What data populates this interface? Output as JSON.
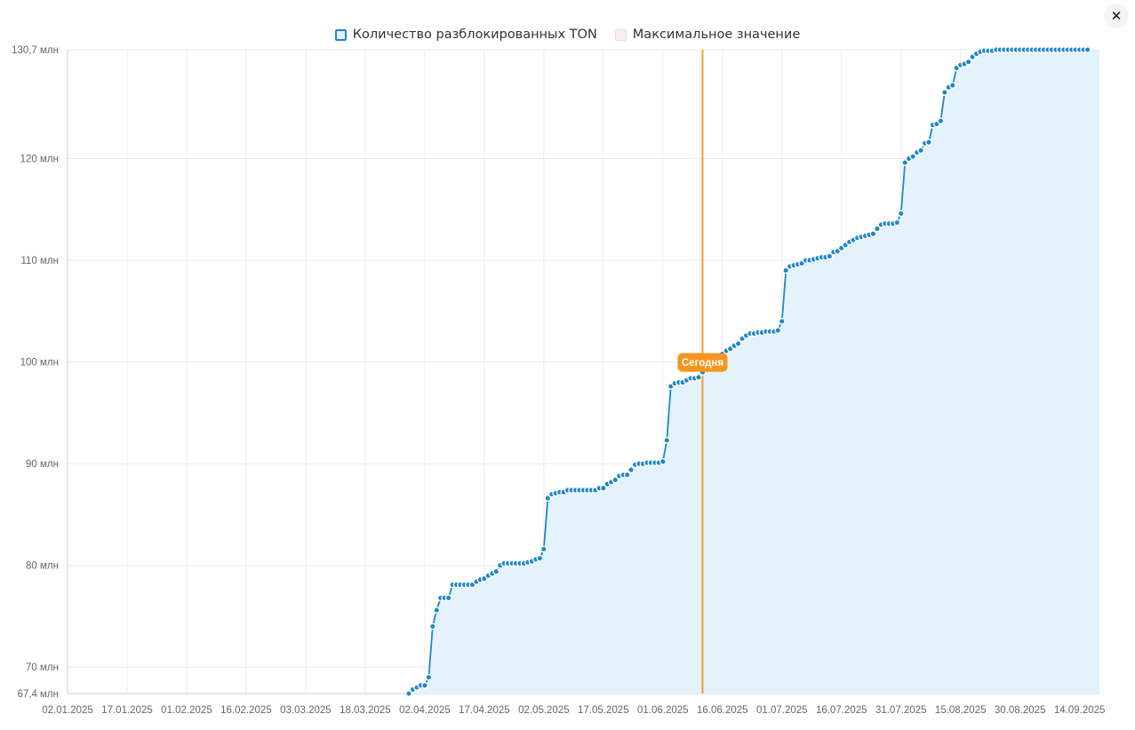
{
  "close_icon": "✕",
  "chart_data": {
    "type": "area",
    "series": [
      {
        "name": "Количество разблокированных TON",
        "color": "#1e88c7",
        "fill": "#e3f2fb",
        "points": [
          [
            "2025-03-29",
            67.4
          ],
          [
            "2025-03-30",
            67.8
          ],
          [
            "2025-03-31",
            68.0
          ],
          [
            "2025-04-01",
            68.2
          ],
          [
            "2025-04-02",
            68.2
          ],
          [
            "2025-04-03",
            69.0
          ],
          [
            "2025-04-04",
            74.0
          ],
          [
            "2025-04-05",
            75.6
          ],
          [
            "2025-04-06",
            76.8
          ],
          [
            "2025-04-07",
            76.8
          ],
          [
            "2025-04-08",
            76.8
          ],
          [
            "2025-04-09",
            78.1
          ],
          [
            "2025-04-10",
            78.1
          ],
          [
            "2025-04-11",
            78.1
          ],
          [
            "2025-04-12",
            78.1
          ],
          [
            "2025-04-13",
            78.1
          ],
          [
            "2025-04-14",
            78.1
          ],
          [
            "2025-04-15",
            78.4
          ],
          [
            "2025-04-16",
            78.6
          ],
          [
            "2025-04-17",
            78.7
          ],
          [
            "2025-04-18",
            79.0
          ],
          [
            "2025-04-19",
            79.2
          ],
          [
            "2025-04-20",
            79.4
          ],
          [
            "2025-04-21",
            80.0
          ],
          [
            "2025-04-22",
            80.2
          ],
          [
            "2025-04-23",
            80.2
          ],
          [
            "2025-04-24",
            80.2
          ],
          [
            "2025-04-25",
            80.2
          ],
          [
            "2025-04-26",
            80.2
          ],
          [
            "2025-04-27",
            80.2
          ],
          [
            "2025-04-28",
            80.3
          ],
          [
            "2025-04-29",
            80.4
          ],
          [
            "2025-04-30",
            80.6
          ],
          [
            "2025-05-01",
            80.7
          ],
          [
            "2025-05-02",
            81.6
          ],
          [
            "2025-05-03",
            86.6
          ],
          [
            "2025-05-04",
            87.0
          ],
          [
            "2025-05-05",
            87.1
          ],
          [
            "2025-05-06",
            87.2
          ],
          [
            "2025-05-07",
            87.2
          ],
          [
            "2025-05-08",
            87.4
          ],
          [
            "2025-05-09",
            87.4
          ],
          [
            "2025-05-10",
            87.4
          ],
          [
            "2025-05-11",
            87.4
          ],
          [
            "2025-05-12",
            87.4
          ],
          [
            "2025-05-13",
            87.4
          ],
          [
            "2025-05-14",
            87.4
          ],
          [
            "2025-05-15",
            87.4
          ],
          [
            "2025-05-16",
            87.6
          ],
          [
            "2025-05-17",
            87.6
          ],
          [
            "2025-05-18",
            88.0
          ],
          [
            "2025-05-19",
            88.2
          ],
          [
            "2025-05-20",
            88.4
          ],
          [
            "2025-05-21",
            88.8
          ],
          [
            "2025-05-22",
            88.9
          ],
          [
            "2025-05-23",
            88.9
          ],
          [
            "2025-05-24",
            89.4
          ],
          [
            "2025-05-25",
            89.9
          ],
          [
            "2025-05-26",
            90.0
          ],
          [
            "2025-05-27",
            90.0
          ],
          [
            "2025-05-28",
            90.1
          ],
          [
            "2025-05-29",
            90.1
          ],
          [
            "2025-05-30",
            90.1
          ],
          [
            "2025-05-31",
            90.1
          ],
          [
            "2025-06-01",
            90.2
          ],
          [
            "2025-06-02",
            92.3
          ],
          [
            "2025-06-03",
            97.6
          ],
          [
            "2025-06-04",
            97.9
          ],
          [
            "2025-06-05",
            98.0
          ],
          [
            "2025-06-06",
            98.0
          ],
          [
            "2025-06-07",
            98.2
          ],
          [
            "2025-06-08",
            98.4
          ],
          [
            "2025-06-09",
            98.4
          ],
          [
            "2025-06-10",
            98.5
          ],
          [
            "2025-06-11",
            99.0
          ],
          [
            "2025-06-12",
            99.5
          ],
          [
            "2025-06-13",
            99.8
          ],
          [
            "2025-06-14",
            100.1
          ],
          [
            "2025-06-15",
            100.4
          ],
          [
            "2025-06-16",
            100.8
          ],
          [
            "2025-06-17",
            101.1
          ],
          [
            "2025-06-18",
            101.3
          ],
          [
            "2025-06-19",
            101.6
          ],
          [
            "2025-06-20",
            101.8
          ],
          [
            "2025-06-21",
            102.3
          ],
          [
            "2025-06-22",
            102.6
          ],
          [
            "2025-06-23",
            102.8
          ],
          [
            "2025-06-24",
            102.8
          ],
          [
            "2025-06-25",
            102.9
          ],
          [
            "2025-06-26",
            102.9
          ],
          [
            "2025-06-27",
            103.0
          ],
          [
            "2025-06-28",
            103.0
          ],
          [
            "2025-06-29",
            103.0
          ],
          [
            "2025-06-30",
            103.1
          ],
          [
            "2025-07-01",
            104.0
          ],
          [
            "2025-07-02",
            109.0
          ],
          [
            "2025-07-03",
            109.4
          ],
          [
            "2025-07-04",
            109.5
          ],
          [
            "2025-07-05",
            109.6
          ],
          [
            "2025-07-06",
            109.7
          ],
          [
            "2025-07-07",
            110.0
          ],
          [
            "2025-07-08",
            110.0
          ],
          [
            "2025-07-09",
            110.1
          ],
          [
            "2025-07-10",
            110.2
          ],
          [
            "2025-07-11",
            110.3
          ],
          [
            "2025-07-12",
            110.3
          ],
          [
            "2025-07-13",
            110.4
          ],
          [
            "2025-07-14",
            110.8
          ],
          [
            "2025-07-15",
            110.9
          ],
          [
            "2025-07-16",
            111.2
          ],
          [
            "2025-07-17",
            111.5
          ],
          [
            "2025-07-18",
            111.8
          ],
          [
            "2025-07-19",
            112.0
          ],
          [
            "2025-07-20",
            112.2
          ],
          [
            "2025-07-21",
            112.3
          ],
          [
            "2025-07-22",
            112.4
          ],
          [
            "2025-07-23",
            112.5
          ],
          [
            "2025-07-24",
            112.6
          ],
          [
            "2025-07-25",
            113.1
          ],
          [
            "2025-07-26",
            113.5
          ],
          [
            "2025-07-27",
            113.6
          ],
          [
            "2025-07-28",
            113.6
          ],
          [
            "2025-07-29",
            113.6
          ],
          [
            "2025-07-30",
            113.7
          ],
          [
            "2025-07-31",
            114.6
          ],
          [
            "2025-08-01",
            119.6
          ],
          [
            "2025-08-02",
            120.0
          ],
          [
            "2025-08-03",
            120.2
          ],
          [
            "2025-08-04",
            120.6
          ],
          [
            "2025-08-05",
            120.8
          ],
          [
            "2025-08-06",
            121.5
          ],
          [
            "2025-08-07",
            121.6
          ],
          [
            "2025-08-08",
            123.3
          ],
          [
            "2025-08-09",
            123.4
          ],
          [
            "2025-08-10",
            123.7
          ],
          [
            "2025-08-11",
            126.5
          ],
          [
            "2025-08-12",
            127.0
          ],
          [
            "2025-08-13",
            127.2
          ],
          [
            "2025-08-14",
            128.9
          ],
          [
            "2025-08-15",
            129.2
          ],
          [
            "2025-08-16",
            129.3
          ],
          [
            "2025-08-17",
            129.5
          ],
          [
            "2025-08-18",
            130.0
          ],
          [
            "2025-08-19",
            130.3
          ],
          [
            "2025-08-20",
            130.5
          ],
          [
            "2025-08-21",
            130.6
          ],
          [
            "2025-08-22",
            130.6
          ],
          [
            "2025-08-23",
            130.6
          ],
          [
            "2025-08-24",
            130.7
          ],
          [
            "2025-08-25",
            130.7
          ],
          [
            "2025-08-26",
            130.7
          ],
          [
            "2025-08-27",
            130.7
          ],
          [
            "2025-08-28",
            130.7
          ],
          [
            "2025-08-29",
            130.7
          ],
          [
            "2025-08-30",
            130.7
          ],
          [
            "2025-08-31",
            130.7
          ],
          [
            "2025-09-01",
            130.7
          ],
          [
            "2025-09-02",
            130.7
          ],
          [
            "2025-09-03",
            130.7
          ],
          [
            "2025-09-04",
            130.7
          ],
          [
            "2025-09-05",
            130.7
          ],
          [
            "2025-09-06",
            130.7
          ],
          [
            "2025-09-07",
            130.7
          ],
          [
            "2025-09-08",
            130.7
          ],
          [
            "2025-09-09",
            130.7
          ],
          [
            "2025-09-10",
            130.7
          ],
          [
            "2025-09-11",
            130.7
          ],
          [
            "2025-09-12",
            130.7
          ],
          [
            "2025-09-13",
            130.7
          ],
          [
            "2025-09-14",
            130.7
          ],
          [
            "2025-09-15",
            130.7
          ],
          [
            "2025-09-16",
            130.7
          ]
        ]
      },
      {
        "name": "Максимальное значение",
        "color": "#f0d6da",
        "fill": "#fbeef0",
        "value": 130.7
      }
    ],
    "x_axis": {
      "type": "date",
      "range": [
        "2025-01-02",
        "2025-09-19"
      ],
      "tick_dates": [
        "2025-01-02",
        "2025-01-17",
        "2025-02-01",
        "2025-02-16",
        "2025-03-03",
        "2025-03-18",
        "2025-04-02",
        "2025-04-17",
        "2025-05-02",
        "2025-05-17",
        "2025-06-01",
        "2025-06-16",
        "2025-07-01",
        "2025-07-16",
        "2025-07-31",
        "2025-08-15",
        "2025-08-30",
        "2025-09-14"
      ],
      "tick_labels": [
        "02.01.2025",
        "17.01.2025",
        "01.02.2025",
        "16.02.2025",
        "03.03.2025",
        "18.03.2025",
        "02.04.2025",
        "17.04.2025",
        "02.05.2025",
        "17.05.2025",
        "01.06.2025",
        "16.06.2025",
        "01.07.2025",
        "16.07.2025",
        "31.07.2025",
        "15.08.2025",
        "30.08.2025",
        "14.09.2025"
      ]
    },
    "y_axis": {
      "unit": "млн",
      "range": [
        67.4,
        130.7
      ],
      "tick_values": [
        67.4,
        70,
        80,
        90,
        100,
        110,
        120,
        130.7
      ],
      "tick_labels": [
        "67,4 млн",
        "70 млн",
        "80 млн",
        "90 млн",
        "100 млн",
        "110 млн",
        "120 млн",
        "130,7 млн"
      ]
    },
    "grid": true,
    "legend_position": "top-center",
    "today_marker": {
      "date": "2025-06-11",
      "label": "Сегодня",
      "label_value": 100.0,
      "color": "#f7941d"
    }
  }
}
